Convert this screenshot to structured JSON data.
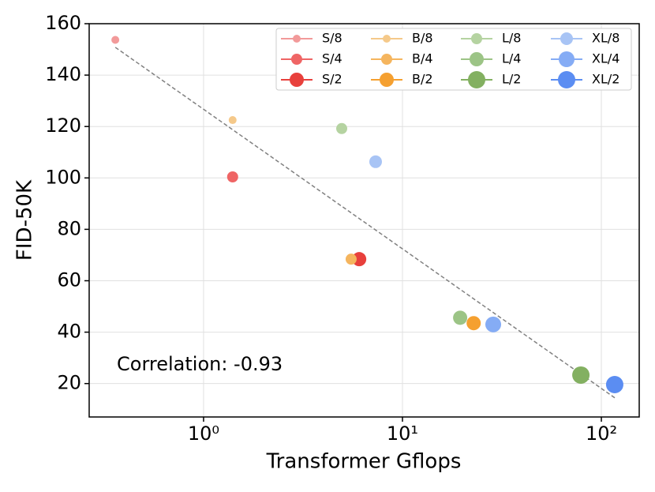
{
  "chart_data": {
    "type": "scatter",
    "x_label": "Transformer Gflops",
    "y_label": "FID-50K",
    "annotation": "Correlation: -0.93",
    "xlog": true,
    "grid": true,
    "legend": "upper right",
    "xlim": [
      0.266,
      155
    ],
    "ylim": [
      7,
      160
    ],
    "xticks": [
      {
        "value": 1,
        "label": "10⁰"
      },
      {
        "value": 10,
        "label": "10¹"
      },
      {
        "value": 100,
        "label": "10²"
      }
    ],
    "yticks": [
      20,
      40,
      60,
      80,
      100,
      120,
      140,
      160
    ],
    "series": [
      {
        "name": "S/8",
        "color": "#f29a9a",
        "size": 5,
        "x": [
          0.36
        ],
        "values": [
          153.7
        ]
      },
      {
        "name": "S/4",
        "color": "#ef6565",
        "size": 7,
        "x": [
          1.4
        ],
        "values": [
          100.4
        ]
      },
      {
        "name": "S/2",
        "color": "#e8403c",
        "size": 9,
        "x": [
          6.06
        ],
        "values": [
          68.4
        ]
      },
      {
        "name": "B/8",
        "color": "#f5c98a",
        "size": 5,
        "x": [
          1.4
        ],
        "values": [
          122.5
        ]
      },
      {
        "name": "B/4",
        "color": "#f5b55e",
        "size": 7,
        "x": [
          5.52
        ],
        "values": [
          68.4
        ]
      },
      {
        "name": "B/2",
        "color": "#f5a030",
        "size": 9,
        "x": [
          22.8
        ],
        "values": [
          43.5
        ]
      },
      {
        "name": "L/8",
        "color": "#b5d3a1",
        "size": 7,
        "x": [
          4.95
        ],
        "values": [
          119.2
        ]
      },
      {
        "name": "L/4",
        "color": "#9cc486",
        "size": 9,
        "x": [
          19.5
        ],
        "values": [
          45.6
        ]
      },
      {
        "name": "L/2",
        "color": "#83b061",
        "size": 11,
        "x": [
          78.9
        ],
        "values": [
          23.3
        ]
      },
      {
        "name": "XL/8",
        "color": "#a8c4f5",
        "size": 8,
        "x": [
          7.33
        ],
        "values": [
          106.3
        ]
      },
      {
        "name": "XL/4",
        "color": "#85acf5",
        "size": 10,
        "x": [
          28.6
        ],
        "values": [
          43
        ]
      },
      {
        "name": "XL/2",
        "color": "#5b8df2",
        "size": 11,
        "x": [
          116.7
        ],
        "values": [
          19.6
        ]
      }
    ],
    "trendline": {
      "color": "#808080",
      "x": [
        0.36,
        118
      ],
      "y": [
        150.8,
        14.2
      ]
    }
  }
}
